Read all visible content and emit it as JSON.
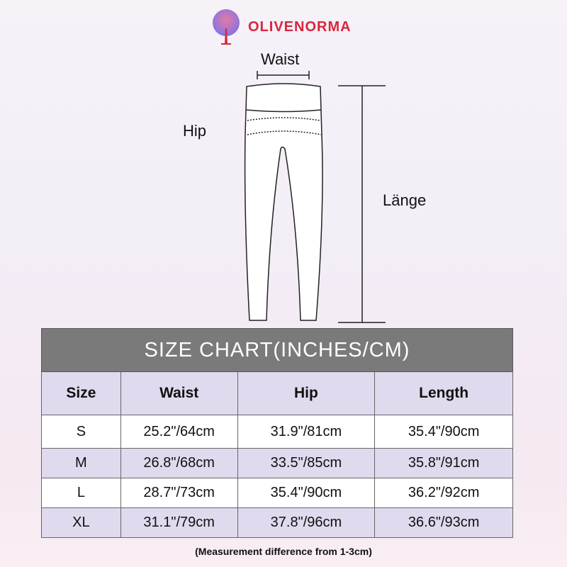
{
  "brand": {
    "name": "OLIVENORMA",
    "color": "#d6283d"
  },
  "diagram": {
    "waist_label": "Waist",
    "hip_label": "Hip",
    "length_label": "Länge"
  },
  "size_chart": {
    "title": "SIZE CHART(INCHES/CM)",
    "headers": [
      "Size",
      "Waist",
      "Hip",
      "Length"
    ],
    "rows": [
      [
        "S",
        "25.2\"/64cm",
        "31.9\"/81cm",
        "35.4\"/90cm"
      ],
      [
        "M",
        "26.8\"/68cm",
        "33.5\"/85cm",
        "35.8\"/91cm"
      ],
      [
        "L",
        "28.7\"/73cm",
        "35.4\"/90cm",
        "36.2\"/92cm"
      ],
      [
        "XL",
        "31.1\"/79cm",
        "37.8\"/96cm",
        "36.6\"/93cm"
      ]
    ],
    "note": "(Measurement difference from 1-3cm)"
  }
}
